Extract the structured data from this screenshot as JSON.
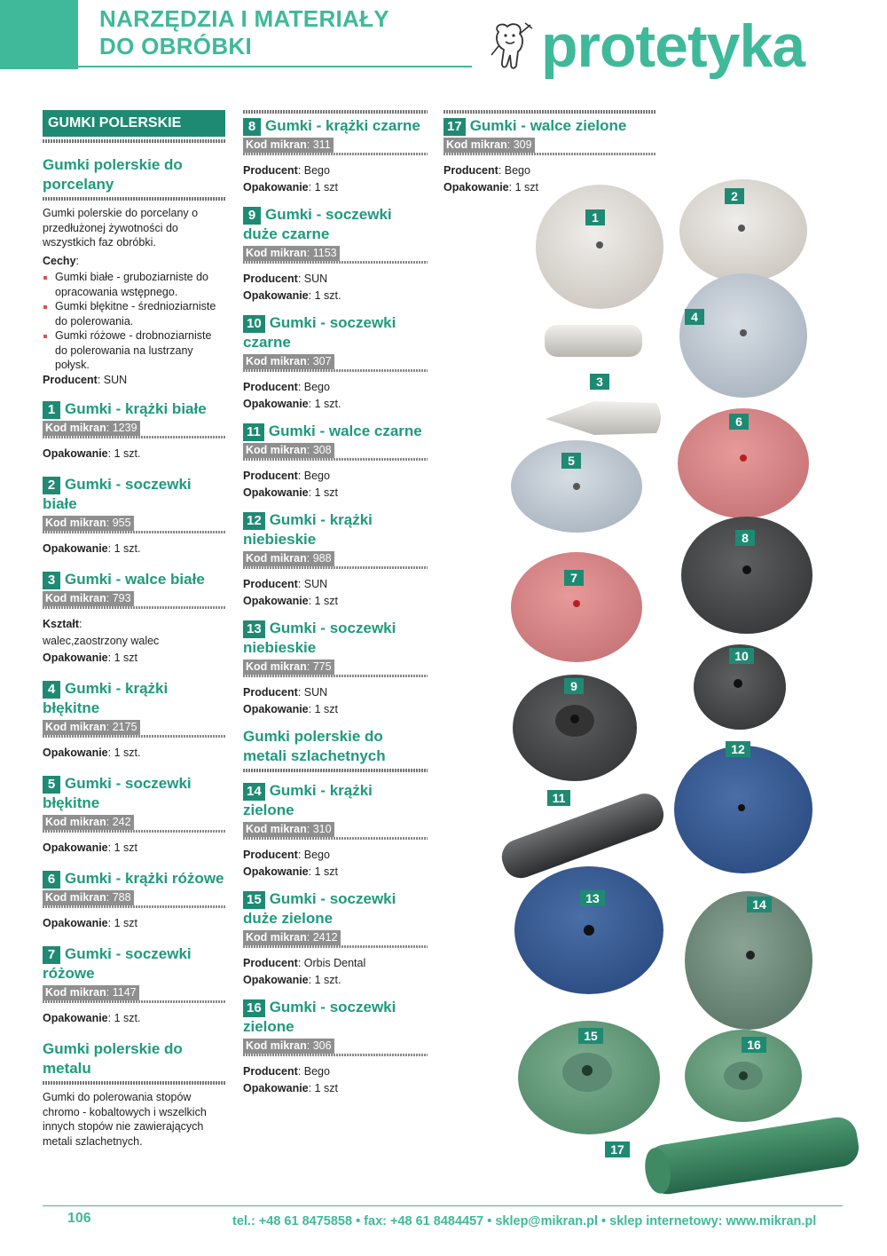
{
  "header": {
    "category_line1": "NARZĘDZIA I MATERIAŁY",
    "category_line2": "DO OBRÓBKI",
    "brand": "protetyka"
  },
  "intro": {
    "section_title": "GUMKI POLERSKIE",
    "porcelain_title": "Gumki polerskie do porcelany",
    "porcelain_desc": "Gumki polerskie do porcelany o przedłużonej żywotności do wszystkich faz obróbki.",
    "features_label": "Cechy",
    "features": [
      "Gumki białe - gruboziarniste do opracowania wstępnego.",
      "Gumki błękitne - średnioziarniste do polerowania.",
      "Gumki różowe - drobnoziarniste do polerowania na lustrzany połysk."
    ],
    "producer_label": "Producent",
    "producer_value": "SUN",
    "metal_title": "Gumki polerskie do metalu",
    "metal_desc": "Gumki do polerowania stopów chromo - kobaltowych i wszelkich innych stopów nie zawierających metali szlachetnych.",
    "precious_title": "Gumki polerskie do metali szlachetnych"
  },
  "labels": {
    "kod": "Kod mikran",
    "producent": "Producent",
    "opakowanie": "Opakowanie",
    "ksztalt": "Kształt"
  },
  "products": [
    {
      "num": "1",
      "title": "Gumki - krążki białe",
      "kod": "1239",
      "pack": "1 szt."
    },
    {
      "num": "2",
      "title": "Gumki - soczewki białe",
      "kod": "955",
      "pack": "1 szt."
    },
    {
      "num": "3",
      "title": "Gumki - walce białe",
      "kod": "793",
      "shape": "walec,zaostrzony walec",
      "pack": "1 szt"
    },
    {
      "num": "4",
      "title": "Gumki - krążki błękitne",
      "kod": "2175",
      "pack": "1 szt."
    },
    {
      "num": "5",
      "title": "Gumki - soczewki błękitne",
      "kod": "242",
      "pack": "1 szt"
    },
    {
      "num": "6",
      "title": "Gumki - krążki różowe",
      "kod": "788",
      "pack": "1 szt"
    },
    {
      "num": "7",
      "title": "Gumki - soczewki różowe",
      "kod": "1147",
      "pack": "1 szt."
    },
    {
      "num": "8",
      "title": "Gumki - krążki czarne",
      "kod": "311",
      "producer": "Bego",
      "pack": "1 szt"
    },
    {
      "num": "9",
      "title": "Gumki - soczewki duże czarne",
      "kod": "1153",
      "producer": "SUN",
      "pack": "1 szt."
    },
    {
      "num": "10",
      "title": "Gumki - soczewki czarne",
      "kod": "307",
      "producer": "Bego",
      "pack": "1 szt."
    },
    {
      "num": "11",
      "title": "Gumki - walce czarne",
      "kod": "308",
      "producer": "Bego",
      "pack": "1 szt"
    },
    {
      "num": "12",
      "title": "Gumki - krążki niebieskie",
      "kod": "988",
      "producer": "SUN",
      "pack": "1 szt"
    },
    {
      "num": "13",
      "title": "Gumki - soczewki niebieskie",
      "kod": "775",
      "producer": "SUN",
      "pack": "1 szt"
    },
    {
      "num": "14",
      "title": "Gumki - krążki zielone",
      "kod": "310",
      "producer": "Bego",
      "pack": "1 szt"
    },
    {
      "num": "15",
      "title": "Gumki - soczewki duże zielone",
      "kod": "2412",
      "producer": "Orbis Dental",
      "pack": "1 szt."
    },
    {
      "num": "16",
      "title": "Gumki - soczewki zielone",
      "kod": "306",
      "producer": "Bego",
      "pack": "1 szt"
    },
    {
      "num": "17",
      "title": "Gumki -  walce zielone",
      "kod": "309",
      "producer": "Bego",
      "pack": "1 szt"
    }
  ],
  "photo_labels": [
    "1",
    "2",
    "3",
    "4",
    "5",
    "6",
    "7",
    "8",
    "9",
    "10",
    "11",
    "12",
    "13",
    "14",
    "15",
    "16",
    "17"
  ],
  "footer": {
    "page": "106",
    "contact": "tel.: +48 61 8475858 • fax: +48 61 8484457 • sklep@mikran.pl • sklep internetowy: www.mikran.pl"
  },
  "colors": {
    "accent": "#3fb99a",
    "dark_accent": "#1f8a73"
  }
}
